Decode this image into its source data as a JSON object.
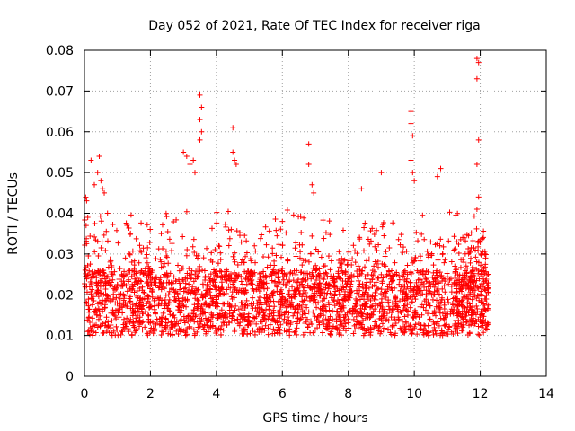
{
  "chart_data": {
    "type": "scatter",
    "title": "Day 052 of 2021, Rate Of TEC Index for receiver riga",
    "xlabel": "GPS time / hours",
    "ylabel": "ROTI / TECUs",
    "xlim": [
      0,
      14
    ],
    "ylim": [
      0,
      0.08
    ],
    "xticks": [
      0,
      2,
      4,
      6,
      8,
      10,
      12,
      14
    ],
    "xtick_labels": [
      "0",
      "2",
      "4",
      "6",
      "8",
      "10",
      "12",
      "14"
    ],
    "yticks": [
      0,
      0.01,
      0.02,
      0.03,
      0.04,
      0.05,
      0.06,
      0.07,
      0.08
    ],
    "ytick_labels": [
      "0",
      "0.01",
      "0.02",
      "0.03",
      "0.04",
      "0.05",
      "0.06",
      "0.07",
      "0.08"
    ],
    "grid": true,
    "marker": "+",
    "color": "#ff0000",
    "series": [
      {
        "name": "ROTI",
        "points": [
          [
            0.05,
            0.037
          ],
          [
            0.1,
            0.039
          ],
          [
            0.2,
            0.053
          ],
          [
            0.3,
            0.047
          ],
          [
            0.4,
            0.05
          ],
          [
            0.45,
            0.054
          ],
          [
            0.5,
            0.048
          ],
          [
            0.55,
            0.046
          ],
          [
            0.6,
            0.045
          ],
          [
            0.7,
            0.04
          ],
          [
            3.0,
            0.055
          ],
          [
            3.1,
            0.054
          ],
          [
            3.2,
            0.052
          ],
          [
            3.3,
            0.053
          ],
          [
            3.35,
            0.05
          ],
          [
            3.5,
            0.069
          ],
          [
            3.55,
            0.066
          ],
          [
            3.5,
            0.063
          ],
          [
            3.55,
            0.06
          ],
          [
            3.5,
            0.058
          ],
          [
            4.5,
            0.061
          ],
          [
            4.5,
            0.055
          ],
          [
            4.55,
            0.053
          ],
          [
            4.6,
            0.052
          ],
          [
            6.8,
            0.057
          ],
          [
            6.8,
            0.052
          ],
          [
            6.9,
            0.047
          ],
          [
            6.95,
            0.045
          ],
          [
            8.4,
            0.046
          ],
          [
            9.0,
            0.05
          ],
          [
            9.9,
            0.065
          ],
          [
            9.9,
            0.062
          ],
          [
            9.95,
            0.059
          ],
          [
            9.9,
            0.053
          ],
          [
            9.95,
            0.05
          ],
          [
            10.0,
            0.048
          ],
          [
            10.8,
            0.051
          ],
          [
            10.7,
            0.049
          ],
          [
            11.9,
            0.078
          ],
          [
            11.95,
            0.077
          ],
          [
            11.9,
            0.073
          ],
          [
            11.95,
            0.058
          ],
          [
            11.9,
            0.052
          ],
          [
            11.95,
            0.044
          ],
          [
            11.9,
            0.041
          ]
        ]
      }
    ]
  }
}
